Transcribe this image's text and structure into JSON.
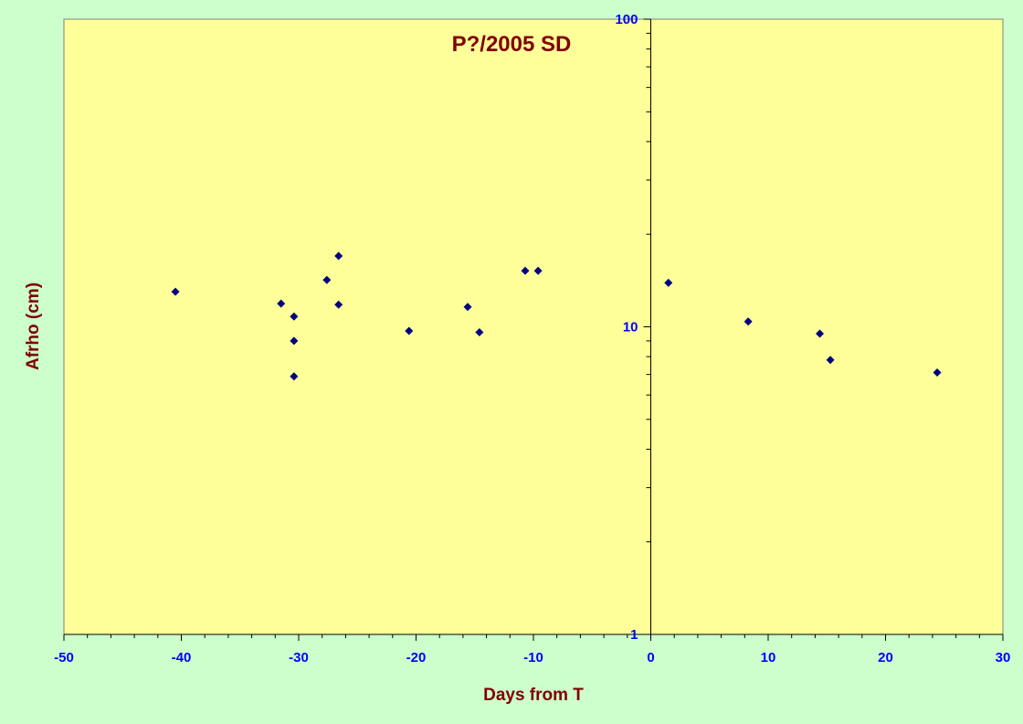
{
  "chart_data": {
    "type": "scatter",
    "title": "P?/2005 SD",
    "xlabel": "Days from T",
    "ylabel": "Afrho (cm)",
    "xlim": [
      -50,
      30
    ],
    "ylim": [
      1,
      100
    ],
    "y_scale": "log",
    "x_ticks": [
      "-50",
      "-40",
      "-30",
      "-20",
      "-10",
      "0",
      "10",
      "20",
      "30"
    ],
    "y_ticks": [
      "1",
      "10",
      "100"
    ],
    "grid": false,
    "legend": "none",
    "colors": {
      "background": "#ccffcc",
      "plot_area": "#ffff99",
      "marker": "#000080",
      "title": "#800000",
      "tick_labels": "#0000ff"
    },
    "series": [
      {
        "points": [
          [
            -40.5,
            13.0
          ],
          [
            -31.5,
            11.9
          ],
          [
            -30.4,
            10.8
          ],
          [
            -30.4,
            9.0
          ],
          [
            -30.4,
            6.9
          ],
          [
            -27.6,
            14.2
          ],
          [
            -26.6,
            17.0
          ],
          [
            -26.6,
            11.8
          ],
          [
            -20.6,
            9.7
          ],
          [
            -15.6,
            11.6
          ],
          [
            -14.6,
            9.6
          ],
          [
            -10.7,
            15.2
          ],
          [
            -9.6,
            15.2
          ],
          [
            1.5,
            13.9
          ],
          [
            8.3,
            10.4
          ],
          [
            14.4,
            9.5
          ],
          [
            15.3,
            7.8
          ],
          [
            24.4,
            7.1
          ]
        ]
      }
    ]
  }
}
